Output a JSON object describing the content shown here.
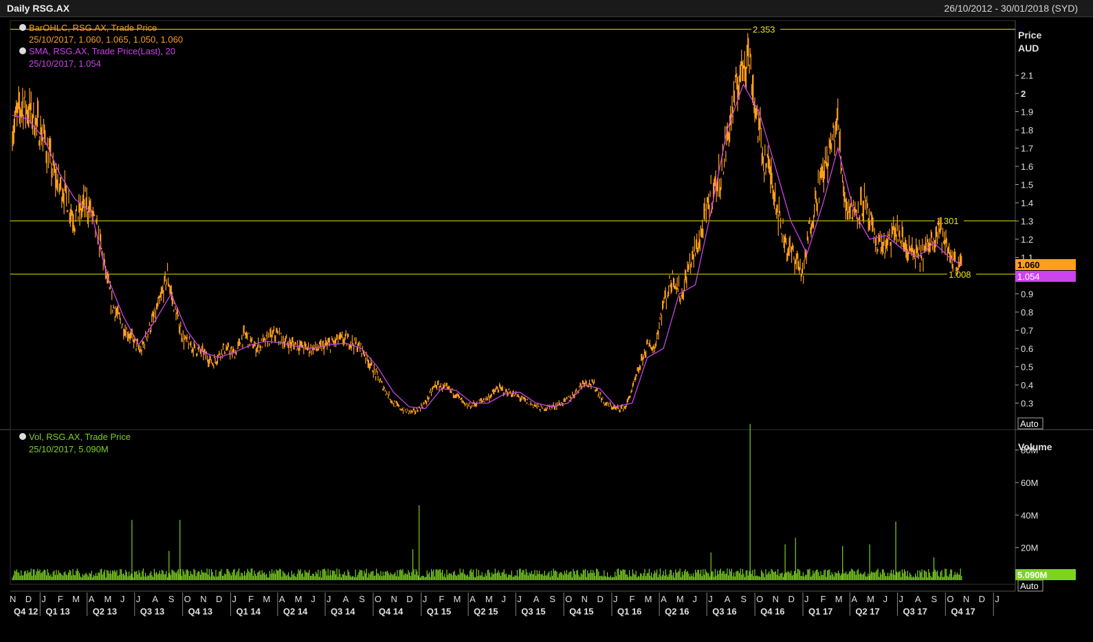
{
  "window": {
    "title": "Daily RSG.AX",
    "date_range": "26/10/2012 - 30/01/2018 (SYD)"
  },
  "price_panel": {
    "legend": [
      {
        "line1": "BarOHLC, RSG.AX, Trade Price",
        "line2": "25/10/2017, 1.060, 1.065, 1.050, 1.060",
        "color": "#ff9f1a"
      },
      {
        "line1": "SMA, RSG.AX, Trade Price(Last),  20",
        "line2": "25/10/2017, 1.054",
        "color": "#cc44ee"
      }
    ],
    "axis_title": "Price",
    "axis_unit": "AUD",
    "auto_label": "Auto",
    "last_price_tag": "1.060",
    "sma_tag": "1.054",
    "hlines": [
      {
        "value": 2.353,
        "label": "2.353"
      },
      {
        "value": 1.301,
        "label": "1.301"
      },
      {
        "value": 1.008,
        "label": "1.008"
      }
    ]
  },
  "volume_panel": {
    "legend": [
      {
        "line1": "Vol, RSG.AX, Trade Price",
        "line2": "25/10/2017, 5.090M",
        "color": "#7ed321"
      }
    ],
    "axis_title": "Volume",
    "auto_label": "Auto",
    "last_volume_tag": "5.090M"
  },
  "x_axis": {
    "months": [
      "N",
      "D",
      "J",
      "F",
      "M",
      "A",
      "M",
      "J",
      "J",
      "A",
      "S",
      "O",
      "N",
      "D",
      "J",
      "F",
      "M",
      "A",
      "M",
      "J",
      "J",
      "A",
      "S",
      "O",
      "N",
      "D",
      "J",
      "F",
      "M",
      "A",
      "M",
      "J",
      "J",
      "A",
      "S",
      "O",
      "N",
      "D",
      "J",
      "F",
      "M",
      "A",
      "M",
      "J",
      "J",
      "A",
      "S",
      "O",
      "N",
      "D",
      "J",
      "F",
      "M",
      "A",
      "M",
      "J",
      "J",
      "A",
      "S",
      "O",
      "N",
      "D",
      "J"
    ],
    "quarters": [
      "Q4 12",
      "Q1 13",
      "Q2 13",
      "Q3 13",
      "Q4 13",
      "Q1 14",
      "Q2 14",
      "Q3 14",
      "Q4 14",
      "Q1 15",
      "Q2 15",
      "Q3 15",
      "Q4 15",
      "Q1 16",
      "Q2 16",
      "Q3 16",
      "Q4 16",
      "Q1 17",
      "Q2 17",
      "Q3 17",
      "Q4 17"
    ]
  },
  "chart_data": [
    {
      "type": "line",
      "title": "Daily RSG.AX",
      "ylabel": "Price AUD",
      "ylim": [
        0.2,
        2.4
      ],
      "yticks": [
        "0.3",
        "0.4",
        "0.5",
        "0.6",
        "0.7",
        "0.8",
        "0.9",
        "1",
        "1.1",
        "1.2",
        "1.3",
        "1.4",
        "1.5",
        "1.6",
        "1.7",
        "1.8",
        "1.9",
        "2",
        "2.1"
      ],
      "ytick_values": [
        0.3,
        0.4,
        0.5,
        0.6,
        0.7,
        0.8,
        0.9,
        1.0,
        1.1,
        1.2,
        1.3,
        1.4,
        1.5,
        1.6,
        1.7,
        1.8,
        1.9,
        2.0,
        2.1
      ],
      "x_start": "2012-11-01",
      "x_end": "2018-01-31",
      "series": [
        {
          "name": "BarOHLC, RSG.AX, Trade Price",
          "color": "#ff9f1a",
          "x": [
            "2012-11-01",
            "2012-11-20",
            "2012-12-10",
            "2013-01-01",
            "2013-01-20",
            "2013-02-10",
            "2013-03-01",
            "2013-03-20",
            "2013-04-01",
            "2013-04-20",
            "2013-05-10",
            "2013-06-01",
            "2013-06-20",
            "2013-07-05",
            "2013-07-20",
            "2013-08-10",
            "2013-08-25",
            "2013-09-05",
            "2013-09-25",
            "2013-10-15",
            "2013-11-01",
            "2013-11-20",
            "2013-12-10",
            "2014-01-01",
            "2014-01-20",
            "2014-02-10",
            "2014-03-01",
            "2014-03-20",
            "2014-04-10",
            "2014-05-01",
            "2014-05-20",
            "2014-06-10",
            "2014-07-01",
            "2014-07-20",
            "2014-08-10",
            "2014-09-01",
            "2014-09-20",
            "2014-10-10",
            "2014-11-01",
            "2014-11-20",
            "2014-12-10",
            "2015-01-01",
            "2015-01-20",
            "2015-02-10",
            "2015-03-01",
            "2015-03-20",
            "2015-04-10",
            "2015-05-01",
            "2015-05-20",
            "2015-06-10",
            "2015-07-01",
            "2015-07-20",
            "2015-08-10",
            "2015-09-01",
            "2015-09-20",
            "2015-10-10",
            "2015-11-01",
            "2015-11-20",
            "2015-12-10",
            "2016-01-01",
            "2016-01-20",
            "2016-02-10",
            "2016-03-01",
            "2016-03-15",
            "2016-04-01",
            "2016-04-20",
            "2016-05-05",
            "2016-05-20",
            "2016-06-10",
            "2016-07-01",
            "2016-07-20",
            "2016-08-10",
            "2016-08-25",
            "2016-09-10",
            "2016-09-25",
            "2016-10-10",
            "2016-10-25",
            "2016-11-10",
            "2016-11-25",
            "2016-12-10",
            "2016-12-25",
            "2017-01-05",
            "2017-01-20",
            "2017-02-10",
            "2017-03-01",
            "2017-03-15",
            "2017-04-01",
            "2017-04-20",
            "2017-05-10",
            "2017-06-01",
            "2017-06-20",
            "2017-07-10",
            "2017-08-01",
            "2017-08-20",
            "2017-09-10",
            "2017-09-25",
            "2017-10-10",
            "2017-10-25"
          ],
          "y": [
            1.8,
            1.95,
            1.88,
            1.75,
            1.55,
            1.45,
            1.3,
            1.4,
            1.35,
            1.15,
            0.85,
            0.72,
            0.65,
            0.58,
            0.7,
            0.85,
            1.0,
            0.85,
            0.65,
            0.6,
            0.58,
            0.52,
            0.6,
            0.57,
            0.68,
            0.6,
            0.64,
            0.68,
            0.63,
            0.62,
            0.6,
            0.6,
            0.62,
            0.65,
            0.64,
            0.6,
            0.5,
            0.4,
            0.3,
            0.26,
            0.25,
            0.3,
            0.4,
            0.38,
            0.35,
            0.28,
            0.3,
            0.33,
            0.38,
            0.36,
            0.33,
            0.3,
            0.27,
            0.28,
            0.3,
            0.34,
            0.42,
            0.4,
            0.3,
            0.27,
            0.28,
            0.45,
            0.62,
            0.6,
            0.85,
            1.0,
            0.88,
            1.05,
            1.2,
            1.45,
            1.55,
            1.9,
            2.1,
            2.25,
            1.9,
            1.65,
            1.55,
            1.3,
            1.15,
            1.1,
            1.0,
            1.25,
            1.45,
            1.65,
            1.85,
            1.4,
            1.35,
            1.4,
            1.2,
            1.15,
            1.25,
            1.15,
            1.1,
            1.15,
            1.28,
            1.15,
            1.08,
            1.06
          ]
        },
        {
          "name": "SMA, RSG.AX, Trade Price(Last),  20",
          "color": "#cc44ee",
          "x": [
            "2012-11-01",
            "2012-12-01",
            "2013-01-01",
            "2013-02-01",
            "2013-03-01",
            "2013-04-01",
            "2013-05-01",
            "2013-06-01",
            "2013-07-01",
            "2013-08-01",
            "2013-09-01",
            "2013-10-01",
            "2013-11-01",
            "2013-12-01",
            "2014-01-01",
            "2014-02-01",
            "2014-03-01",
            "2014-04-01",
            "2014-05-01",
            "2014-06-01",
            "2014-07-01",
            "2014-08-01",
            "2014-09-01",
            "2014-10-01",
            "2014-11-01",
            "2014-12-01",
            "2015-01-01",
            "2015-02-01",
            "2015-03-01",
            "2015-04-01",
            "2015-05-01",
            "2015-06-01",
            "2015-07-01",
            "2015-08-01",
            "2015-09-01",
            "2015-10-01",
            "2015-11-01",
            "2015-12-01",
            "2016-01-01",
            "2016-02-01",
            "2016-03-01",
            "2016-04-01",
            "2016-05-01",
            "2016-06-01",
            "2016-07-01",
            "2016-08-01",
            "2016-09-01",
            "2016-10-01",
            "2016-11-01",
            "2016-12-01",
            "2017-01-01",
            "2017-02-01",
            "2017-03-01",
            "2017-04-01",
            "2017-05-01",
            "2017-06-01",
            "2017-07-01",
            "2017-08-01",
            "2017-09-01",
            "2017-10-01",
            "2017-10-25"
          ],
          "y": [
            1.88,
            1.86,
            1.75,
            1.55,
            1.42,
            1.35,
            1.0,
            0.78,
            0.62,
            0.75,
            0.9,
            0.7,
            0.58,
            0.55,
            0.58,
            0.62,
            0.64,
            0.63,
            0.61,
            0.6,
            0.62,
            0.63,
            0.6,
            0.5,
            0.36,
            0.28,
            0.27,
            0.38,
            0.37,
            0.3,
            0.3,
            0.35,
            0.36,
            0.3,
            0.28,
            0.3,
            0.4,
            0.38,
            0.28,
            0.3,
            0.55,
            0.6,
            0.9,
            0.95,
            1.35,
            1.8,
            2.05,
            1.9,
            1.6,
            1.3,
            1.12,
            1.4,
            1.7,
            1.35,
            1.2,
            1.22,
            1.15,
            1.1,
            1.18,
            1.1,
            1.054
          ]
        }
      ]
    },
    {
      "type": "bar",
      "title": "Vol, RSG.AX, Trade Price",
      "ylabel": "Volume",
      "ylim": [
        0,
        90
      ],
      "yticks": [
        "20M",
        "40M",
        "60M",
        "80M"
      ],
      "ytick_values": [
        20,
        40,
        60,
        80
      ],
      "unit": "M",
      "baseline_volume": 4,
      "spikes": [
        {
          "x": "2013-06-18",
          "value": 37
        },
        {
          "x": "2013-08-28",
          "value": 18
        },
        {
          "x": "2013-09-18",
          "value": 37
        },
        {
          "x": "2014-12-08",
          "value": 19
        },
        {
          "x": "2014-12-20",
          "value": 46
        },
        {
          "x": "2016-07-01",
          "value": 17
        },
        {
          "x": "2016-09-14",
          "value": 96
        },
        {
          "x": "2016-11-20",
          "value": 22
        },
        {
          "x": "2016-12-10",
          "value": 26
        },
        {
          "x": "2017-03-10",
          "value": 21
        },
        {
          "x": "2017-05-01",
          "value": 22
        },
        {
          "x": "2017-06-20",
          "value": 36
        },
        {
          "x": "2017-09-01",
          "value": 14
        }
      ],
      "last_value": 5.09
    }
  ]
}
